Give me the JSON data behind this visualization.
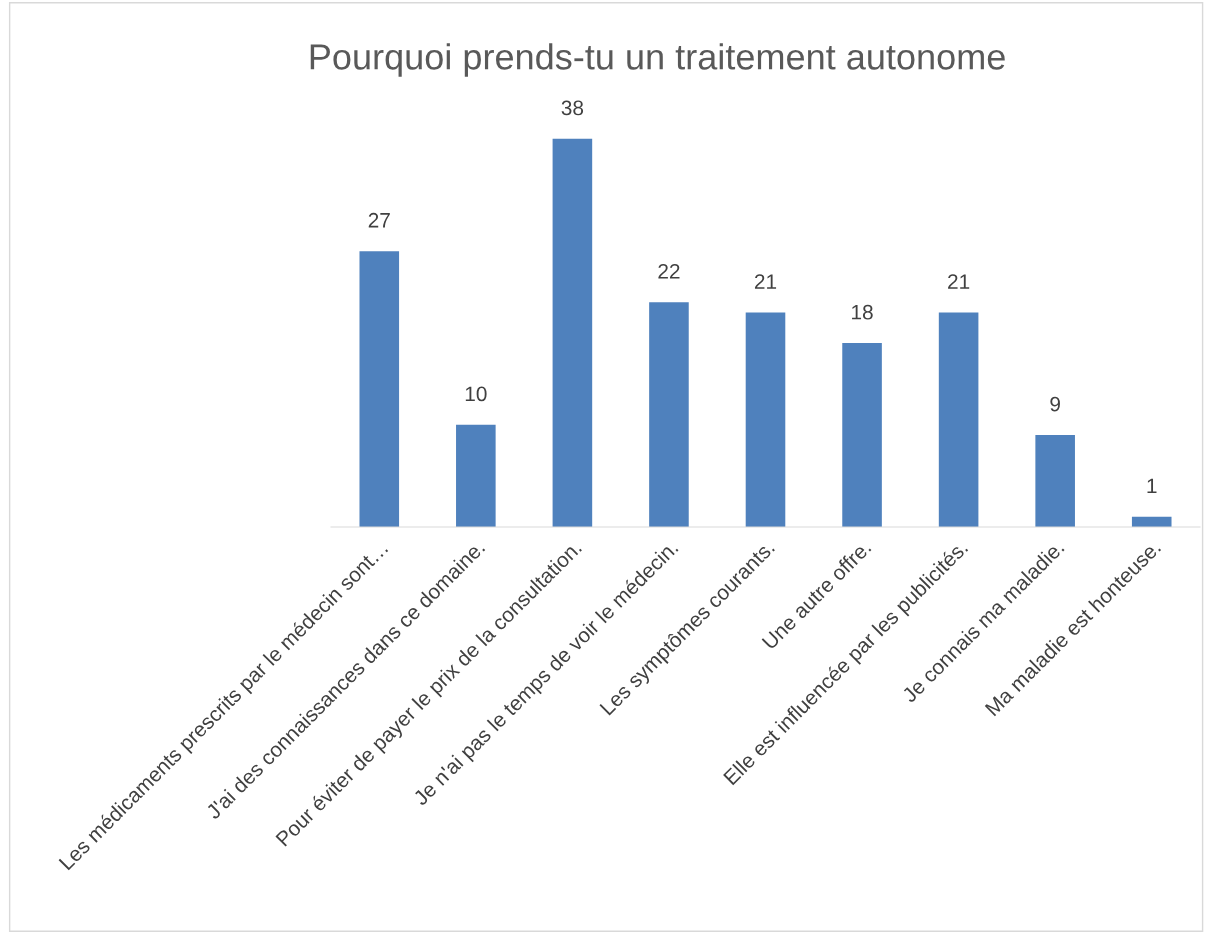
{
  "chart_data": {
    "type": "bar",
    "title": "Pourquoi prends-tu un traitement autonome",
    "categories": [
      "Les médicaments prescrits par le médecin sont…",
      "J'ai des connaissances dans ce domaine.",
      "Pour éviter de payer le prix de la consultation.",
      "Je n'ai pas le temps de voir le médecin.",
      "Les symptômes courants.",
      "Une autre offre.",
      "Elle est influencée par les publicités.",
      "Je connais ma maladie.",
      "Ma maladie est honteuse."
    ],
    "values": [
      27,
      10,
      38,
      22,
      21,
      18,
      21,
      9,
      1
    ],
    "color": "#4f81bd",
    "data_labels": true,
    "grid": false,
    "legend": false,
    "tick_labels": "x"
  }
}
